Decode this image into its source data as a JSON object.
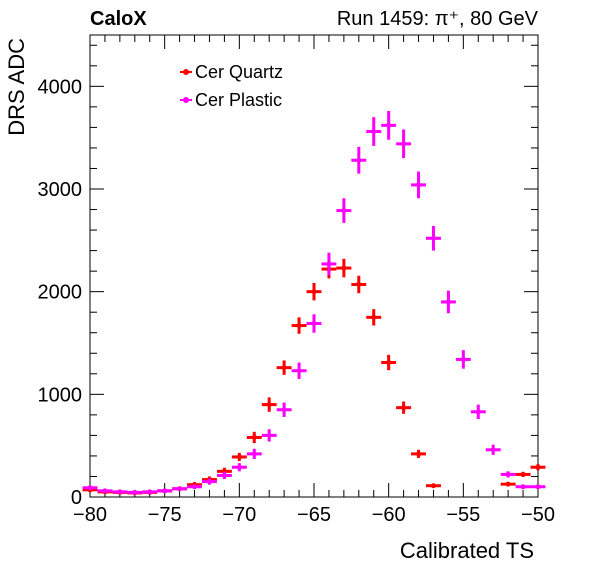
{
  "header": {
    "left": "CaloX",
    "right": "Run 1459:   π⁺, 80 GeV"
  },
  "chart_data": {
    "type": "scatter",
    "xlabel": "Calibrated TS",
    "ylabel": "DRS ADC",
    "xlim": [
      -80,
      -50
    ],
    "ylim": [
      0,
      4500
    ],
    "x_ticks": [
      -80,
      -75,
      -70,
      -65,
      -60,
      -55,
      -50
    ],
    "x_tick_labels": [
      "−80",
      "−75",
      "−70",
      "−65",
      "−60",
      "−55",
      "−50"
    ],
    "y_ticks": [
      0,
      1000,
      2000,
      3000,
      4000
    ],
    "y_tick_labels": [
      "0",
      "1000",
      "2000",
      "3000",
      "4000"
    ],
    "grid": false,
    "legend_position": "top-left",
    "x_bin_half_width": 0.5,
    "series": [
      {
        "name": "Cer Quartz",
        "color": "#ff0000",
        "x": [
          -80,
          -79,
          -78,
          -77,
          -76,
          -75,
          -74,
          -73,
          -72,
          -71,
          -70,
          -69,
          -68,
          -67,
          -66,
          -65,
          -64,
          -63,
          -62,
          -61,
          -60,
          -59,
          -58,
          -57,
          -56,
          -55,
          -54,
          -53,
          -52,
          -51,
          -50
        ],
        "y": [
          70,
          50,
          45,
          40,
          45,
          60,
          80,
          120,
          170,
          250,
          390,
          580,
          900,
          1260,
          1670,
          2000,
          2220,
          2230,
          2070,
          1750,
          1310,
          870,
          420,
          110,
          null,
          null,
          null,
          null,
          125,
          220,
          290
        ],
        "yerr": [
          15,
          15,
          15,
          15,
          15,
          15,
          20,
          25,
          30,
          35,
          40,
          55,
          70,
          70,
          80,
          85,
          90,
          90,
          85,
          80,
          75,
          60,
          40,
          20,
          null,
          null,
          null,
          null,
          20,
          25,
          30
        ]
      },
      {
        "name": "Cer Plastic",
        "color": "#ff00ff",
        "x": [
          -80,
          -79,
          -78,
          -77,
          -76,
          -75,
          -74,
          -73,
          -72,
          -71,
          -70,
          -69,
          -68,
          -67,
          -66,
          -65,
          -64,
          -63,
          -62,
          -61,
          -60,
          -59,
          -58,
          -57,
          -56,
          -55,
          -54,
          -53,
          -52,
          -51,
          -50
        ],
        "y": [
          90,
          60,
          50,
          45,
          50,
          60,
          80,
          100,
          150,
          210,
          290,
          420,
          600,
          850,
          1230,
          1690,
          2270,
          2790,
          3280,
          3560,
          3620,
          3440,
          3040,
          2520,
          1900,
          1340,
          830,
          460,
          220,
          100,
          100
        ],
        "yerr": [
          15,
          15,
          15,
          15,
          15,
          15,
          20,
          20,
          30,
          35,
          40,
          50,
          60,
          70,
          80,
          90,
          110,
          120,
          130,
          140,
          140,
          140,
          130,
          120,
          110,
          90,
          70,
          50,
          30,
          20,
          20
        ]
      }
    ]
  }
}
